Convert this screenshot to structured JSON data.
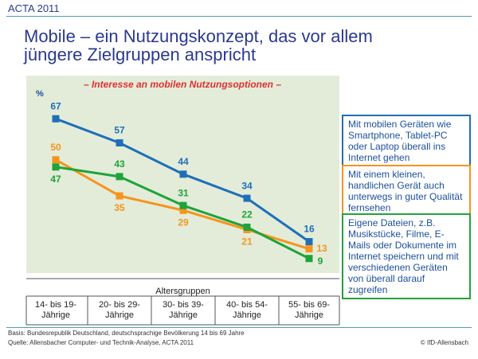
{
  "header": "ACTA 2011",
  "title": "Mobile – ein Nutzungskonzept, das vor allem jüngere Zielgruppen anspricht",
  "footer": {
    "basis": "Basis: Bundesrepublik Deutschland, deutschsprachige Bevölkerung 14 bis 69 Jahre",
    "source": "Quelle: Allensbacher Computer- und Technik-Analyse, ACTA 2011",
    "copyright": "© IfD-Allensbach"
  },
  "chart_data": {
    "type": "line",
    "subtitle": "– Interesse an mobilen Nutzungsoptionen –",
    "y_label": "%",
    "x_label": "Altersgruppen",
    "categories": [
      "14- bis 19-\nJährige",
      "20- bis 29-\nJährige",
      "30- bis 39-\nJährige",
      "40- bis 54-\nJährige",
      "55- bis 69-\nJährige"
    ],
    "ylim": [
      0,
      75
    ],
    "series": [
      {
        "name": "Mit mobilen Geräten wie Smartphone, Tablet-PC oder Laptop überall ins Internet gehen",
        "color": "#1f6fb8",
        "values": [
          67,
          57,
          44,
          34,
          16
        ]
      },
      {
        "name": "Mit einem kleinen, handlichen Gerät auch unterwegs in guter Qualität fernsehen",
        "color": "#f7941d",
        "values": [
          50,
          35,
          29,
          21,
          13
        ]
      },
      {
        "name": "Eigene Dateien, z.B. Musikstücke, Filme, E-Mails oder Dokumente im Internet speichern und mit verschiedenen Geräten von überall darauf zugreifen",
        "color": "#1fa33a",
        "values": [
          47,
          43,
          31,
          22,
          9
        ]
      }
    ]
  }
}
